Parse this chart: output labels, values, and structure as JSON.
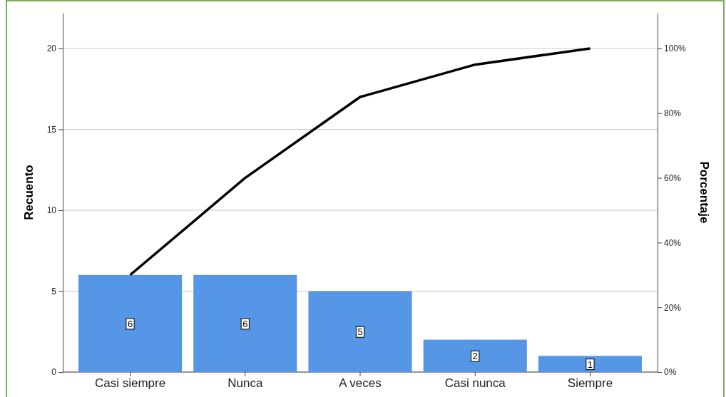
{
  "chart_data": {
    "type": "bar",
    "ylabel": "Recuento",
    "y2label": "Porcentaje",
    "categories": [
      "Casi siempre",
      "Nunca",
      "A veces",
      "Casi nunca",
      "Siempre"
    ],
    "series": [
      {
        "color": "#5596e6",
        "values": [
          6,
          6,
          5,
          2,
          1
        ],
        "value_labels": [
          "6",
          "6",
          "5",
          "2",
          "1"
        ]
      },
      {
        "type": "line",
        "axis": "y2",
        "color": "#000000",
        "values": [
          30,
          60,
          85,
          95,
          100
        ]
      }
    ],
    "ylim": [
      0,
      22.2
    ],
    "yticks": [
      0,
      5,
      10,
      15,
      20
    ],
    "y2lim": [
      0,
      111
    ],
    "y2ticks": [
      {
        "value": 0,
        "label": "0%"
      },
      {
        "value": 20,
        "label": "20%"
      },
      {
        "value": 40,
        "label": "40%"
      },
      {
        "value": 60,
        "label": "60%"
      },
      {
        "value": 80,
        "label": "80%"
      },
      {
        "value": 100,
        "label": "100%"
      }
    ],
    "grid": "y",
    "marker": "none",
    "line_style": "solid"
  }
}
